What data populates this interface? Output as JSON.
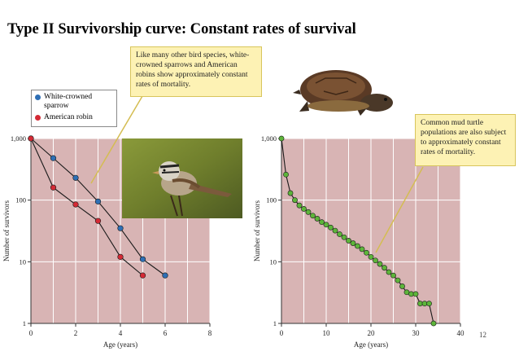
{
  "slide": {
    "title": "Type II Survivorship curve: Constant rates of survival",
    "page_number": "12",
    "callout_birds": "Like many other bird species, white-crowned sparrows and American robins show approximately constant rates of mortality.",
    "callout_turtle": "Common mud turtle populations are also subject to approximately constant rates of mortality.",
    "plot_bg": "#d8b4b4",
    "grid_color": "#ffffff"
  },
  "chart_data": [
    {
      "type": "line",
      "xlabel": "Age (years)",
      "ylabel": "Number of survivors",
      "xlim": [
        0,
        8
      ],
      "ylim": [
        1,
        1000
      ],
      "yscale": "log",
      "xticks": [
        "0",
        "2",
        "4",
        "6",
        "8"
      ],
      "yticks": [
        "1",
        "10",
        "100",
        "1,000"
      ],
      "grid": true,
      "legend_position": "top-left",
      "series": [
        {
          "name": "White-crowned sparrow",
          "color": "#2e6fb5",
          "x": [
            0,
            1,
            2,
            3,
            4,
            5,
            6
          ],
          "y": [
            1000,
            480,
            230,
            95,
            35,
            11,
            6
          ]
        },
        {
          "name": "American robin",
          "color": "#d42a35",
          "x": [
            0,
            1,
            2,
            3,
            4,
            5
          ],
          "y": [
            1000,
            160,
            85,
            46,
            12,
            6
          ]
        }
      ]
    },
    {
      "type": "line",
      "xlabel": "Age (years)",
      "ylabel": "Number of survivors",
      "xlim": [
        0,
        40
      ],
      "ylim": [
        1,
        1000
      ],
      "yscale": "log",
      "xticks": [
        "0",
        "10",
        "20",
        "30",
        "40"
      ],
      "yticks": [
        "1",
        "10",
        "100",
        "1,000"
      ],
      "grid": true,
      "series": [
        {
          "color": "#5db53a",
          "x": [
            0,
            1,
            2,
            3,
            4,
            5,
            6,
            7,
            8,
            9,
            10,
            11,
            12,
            13,
            14,
            15,
            16,
            17,
            18,
            19,
            20,
            21,
            22,
            23,
            24,
            25,
            26,
            27,
            28,
            29,
            30,
            31,
            32,
            33,
            34
          ],
          "y": [
            1000,
            260,
            130,
            100,
            82,
            72,
            64,
            56,
            50,
            44,
            40,
            36,
            32,
            28,
            25,
            22,
            20,
            18,
            16,
            14,
            12,
            10.5,
            9.2,
            8,
            6.8,
            6,
            5,
            4,
            3.2,
            3,
            3,
            2.1,
            2.1,
            2.1,
            1
          ]
        }
      ]
    }
  ]
}
